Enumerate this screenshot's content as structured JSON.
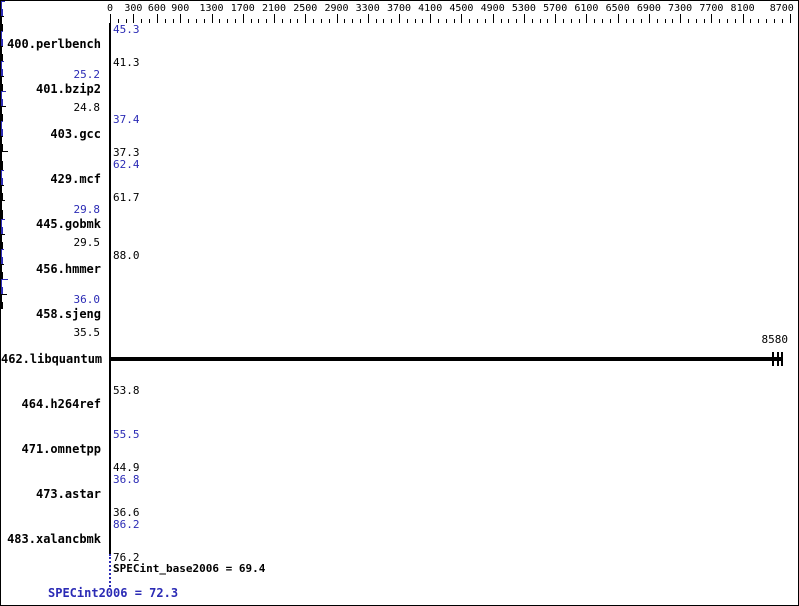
{
  "colors": {
    "accent_blue": "#2b2bb5",
    "bar_black": "#000000",
    "background": "#ffffff"
  },
  "axis": {
    "max": 8700,
    "minor_step": 100,
    "labeled_ticks": [
      [
        0,
        "0"
      ],
      [
        300,
        "300"
      ],
      [
        600,
        "600"
      ],
      [
        900,
        "900"
      ],
      [
        1300,
        "1300"
      ],
      [
        1700,
        "1700"
      ],
      [
        2100,
        "2100"
      ],
      [
        2500,
        "2500"
      ],
      [
        2900,
        "2900"
      ],
      [
        3300,
        "3300"
      ],
      [
        3700,
        "3700"
      ],
      [
        4100,
        "4100"
      ],
      [
        4500,
        "4500"
      ],
      [
        4900,
        "4900"
      ],
      [
        5300,
        "5300"
      ],
      [
        5700,
        "5700"
      ],
      [
        6100,
        "6100"
      ],
      [
        6500,
        "6500"
      ],
      [
        6900,
        "6900"
      ],
      [
        7300,
        "7300"
      ],
      [
        7700,
        "7700"
      ],
      [
        8100,
        "8100"
      ],
      [
        8700,
        "8700"
      ]
    ]
  },
  "rows": [
    {
      "name": "400.perlbench",
      "peak": "45.3",
      "base": "41.3",
      "side": "right"
    },
    {
      "name": "401.bzip2",
      "peak": "25.2",
      "base": "24.8",
      "side": "left"
    },
    {
      "name": "403.gcc",
      "peak": "37.4",
      "base": "37.3",
      "side": "right"
    },
    {
      "name": "429.mcf",
      "peak": "62.4",
      "base": "61.7",
      "side": "right"
    },
    {
      "name": "445.gobmk",
      "peak": "29.8",
      "base": "29.5",
      "side": "left"
    },
    {
      "name": "456.hmmer",
      "single": "88.0",
      "side": "right"
    },
    {
      "name": "458.sjeng",
      "peak": "36.0",
      "base": "35.5",
      "side": "left"
    },
    {
      "name": "462.libquantum",
      "bar": "8580"
    },
    {
      "name": "464.h264ref",
      "single": "53.8",
      "side": "right"
    },
    {
      "name": "471.omnetpp",
      "peak": "55.5",
      "base": "44.9",
      "side": "right"
    },
    {
      "name": "473.astar",
      "peak": "36.8",
      "base": "36.6",
      "side": "right"
    },
    {
      "name": "483.xalancbmk",
      "peak": "86.2",
      "base": "76.2",
      "side": "right"
    }
  ],
  "footer": {
    "base_metric": "SPECint_base2006 = 69.4",
    "peak_metric": "SPECint2006 = 72.3"
  },
  "chart_data": {
    "type": "bar",
    "orientation": "horizontal",
    "title": "",
    "xlabel": "",
    "ylabel": "",
    "xlim": [
      0,
      8750
    ],
    "grid": false,
    "legend_position": "none",
    "axis_tick_labels": [
      0,
      300,
      600,
      900,
      1300,
      1700,
      2100,
      2500,
      2900,
      3300,
      3700,
      4100,
      4500,
      4900,
      5300,
      5700,
      6100,
      6500,
      6900,
      7300,
      7700,
      8100,
      8700
    ],
    "categories": [
      "400.perlbench",
      "401.bzip2",
      "403.gcc",
      "429.mcf",
      "445.gobmk",
      "456.hmmer",
      "458.sjeng",
      "462.libquantum",
      "464.h264ref",
      "471.omnetpp",
      "473.astar",
      "483.xalancbmk"
    ],
    "series": [
      {
        "name": "SPECint2006 (peak)",
        "color": "#2b2bb5",
        "values": [
          45.3,
          25.2,
          37.4,
          62.4,
          29.8,
          null,
          36.0,
          null,
          null,
          55.5,
          36.8,
          86.2
        ]
      },
      {
        "name": "SPECint_base2006 (base)",
        "color": "#000000",
        "values": [
          41.3,
          24.8,
          37.3,
          61.7,
          29.5,
          88.0,
          35.5,
          8580,
          53.8,
          44.9,
          36.6,
          76.2
        ]
      }
    ],
    "summary": {
      "SPECint_base2006": 69.4,
      "SPECint2006": 72.3
    }
  }
}
